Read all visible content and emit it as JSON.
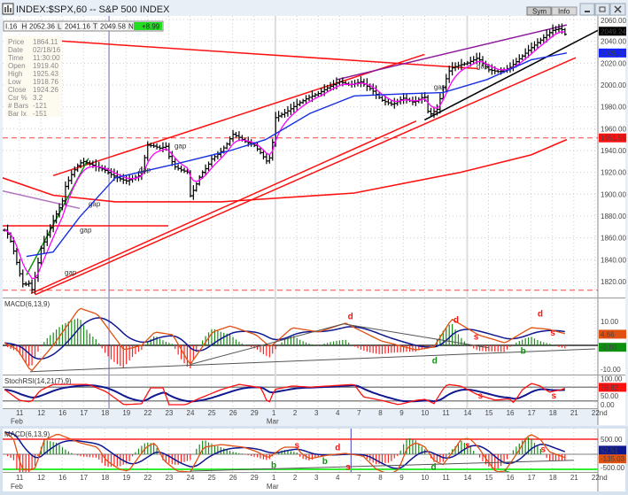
{
  "window": {
    "title": "INDEX:$SPX,60 -- S&P 500 INDEX",
    "sym_button": "Sym",
    "info_button": "Info",
    "minimize_icon": "minimize-icon",
    "maximize_icon": "maximize-icon",
    "close_icon": "close-icon"
  },
  "quote_bar": {
    "open_partial": "I.16",
    "h_label": "H",
    "high": "2052.36",
    "l_label": "L",
    "low": "2041.16",
    "t_label": "T",
    "last": "2049.58",
    "n_label": "N",
    "net": "+8.99"
  },
  "info_box": [
    {
      "k": "Price",
      "v": "1864.11"
    },
    {
      "k": "Date",
      "v": "02/18/16"
    },
    {
      "k": "Time",
      "v": "11:30:00"
    },
    {
      "k": "Open",
      "v": "1919.40"
    },
    {
      "k": "High",
      "v": "1925.43"
    },
    {
      "k": "Low",
      "v": "1918.76"
    },
    {
      "k": "Close",
      "v": "1924.26"
    },
    {
      "k": "Csr %",
      "v": "3.2"
    },
    {
      "k": "# Bars",
      "v": "-121"
    },
    {
      "k": "Bar Ix",
      "v": "-151"
    }
  ],
  "colors": {
    "up": "#1a8a1a",
    "down": "#ff2020",
    "macd": "#e05010",
    "signal": "#101890",
    "ma_short": "#ff00ff",
    "ma_mid": "#1830e0",
    "ma_long": "#ff1010",
    "trend": "#ff1010",
    "channel_top": "#8a1a9a"
  },
  "panels": {
    "macd1_label": "MACD(6,13,9)",
    "stoch_label": "StochRSI(14,21(7),9)",
    "macd2_label": "MACD(6,13,9)"
  },
  "chart_data": {
    "type": "candlestick-ohlc",
    "symbol": "INDEX:$SPX",
    "interval": "60 min",
    "x_ticks": [
      "11",
      "12",
      "16",
      "17",
      "18",
      "19",
      "22",
      "23",
      "24",
      "25",
      "26",
      "29",
      "1",
      "2",
      "3",
      "4",
      "7",
      "8",
      "9",
      "10",
      "11",
      "14",
      "15",
      "16",
      "17",
      "18",
      "21",
      "22nd"
    ],
    "months": [
      {
        "label": "Feb",
        "t": 0
      },
      {
        "label": "Mar",
        "t": 12
      }
    ],
    "price_axis": [
      "2060.00",
      "2040.00",
      "2020.00",
      "2000.00",
      "1980.00",
      "1960.00",
      "1940.00",
      "1920.00",
      "1900.00",
      "1880.00",
      "1860.00",
      "1840.00",
      "1820.00"
    ],
    "price_axis_values": [
      2060,
      2040,
      2020,
      2000,
      1980,
      1960,
      1940,
      1920,
      1900,
      1880,
      1860,
      1840,
      1820
    ],
    "price_markers": [
      {
        "text": "2049.24",
        "value": 2049.24,
        "color": "#000000"
      },
      {
        "text": "2029.32",
        "value": 2029.32,
        "color": "#1020ff"
      },
      {
        "text": "1951.55",
        "value": 1951.55,
        "color": "#ff1010"
      }
    ],
    "price_path": [
      [
        -0.7,
        1867
      ],
      [
        -0.5,
        1862
      ],
      [
        -0.3,
        1850
      ],
      [
        0,
        1828
      ],
      [
        0.2,
        1815
      ],
      [
        0.4,
        1820
      ],
      [
        0.6,
        1812
      ],
      [
        0.8,
        1830
      ],
      [
        1.0,
        1850
      ],
      [
        1.2,
        1858
      ],
      [
        1.5,
        1872
      ],
      [
        1.8,
        1885
      ],
      [
        2.0,
        1892
      ],
      [
        2.1,
        1905
      ],
      [
        2.5,
        1920
      ],
      [
        2.8,
        1928
      ],
      [
        3.0,
        1930
      ],
      [
        3.5,
        1926
      ],
      [
        4.0,
        1922
      ],
      [
        4.3,
        1918
      ],
      [
        4.6,
        1915
      ],
      [
        5.0,
        1912
      ],
      [
        5.4,
        1915
      ],
      [
        5.7,
        1918
      ],
      [
        6.0,
        1945
      ],
      [
        6.3,
        1944
      ],
      [
        6.6,
        1942
      ],
      [
        6.9,
        1944
      ],
      [
        7.0,
        1935
      ],
      [
        7.3,
        1925
      ],
      [
        7.6,
        1922
      ],
      [
        7.9,
        1920
      ],
      [
        8.0,
        1898
      ],
      [
        8.2,
        1905
      ],
      [
        8.5,
        1918
      ],
      [
        8.8,
        1925
      ],
      [
        9.0,
        1932
      ],
      [
        9.4,
        1938
      ],
      [
        9.7,
        1945
      ],
      [
        10.0,
        1955
      ],
      [
        10.3,
        1952
      ],
      [
        10.6,
        1948
      ],
      [
        11.0,
        1945
      ],
      [
        11.3,
        1938
      ],
      [
        11.6,
        1930
      ],
      [
        11.8,
        1935
      ],
      [
        12.0,
        1970
      ],
      [
        12.5,
        1975
      ],
      [
        13.0,
        1982
      ],
      [
        13.5,
        1988
      ],
      [
        14.0,
        1992
      ],
      [
        14.5,
        1998
      ],
      [
        15.0,
        2003
      ],
      [
        15.5,
        2000
      ],
      [
        16.0,
        2003
      ],
      [
        16.5,
        1996
      ],
      [
        17.0,
        1986
      ],
      [
        17.5,
        1982
      ],
      [
        18.0,
        1988
      ],
      [
        18.5,
        1984
      ],
      [
        19.0,
        1990
      ],
      [
        19.2,
        1972
      ],
      [
        19.6,
        1978
      ],
      [
        19.9,
        2000
      ],
      [
        20.2,
        2015
      ],
      [
        20.6,
        2018
      ],
      [
        21.0,
        2020
      ],
      [
        21.5,
        2025
      ],
      [
        21.8,
        2018
      ],
      [
        22.0,
        2014
      ],
      [
        22.5,
        2012
      ],
      [
        23.0,
        2016
      ],
      [
        23.5,
        2025
      ],
      [
        24.0,
        2034
      ],
      [
        24.5,
        2042
      ],
      [
        25.0,
        2050
      ],
      [
        25.4,
        2052
      ],
      [
        25.6,
        2046
      ],
      [
        25.7,
        2049.24
      ]
    ],
    "ma_mid": [
      [
        0.33,
        1843
      ],
      [
        1.58,
        1847
      ],
      [
        2.82,
        1879
      ],
      [
        4.49,
        1915
      ],
      [
        7.39,
        1928
      ],
      [
        9.89,
        1940
      ],
      [
        11.55,
        1950
      ],
      [
        13.63,
        1974
      ],
      [
        15.7,
        1990
      ],
      [
        18.2,
        1992
      ],
      [
        19.86,
        1993
      ],
      [
        21.93,
        2005
      ],
      [
        24.0,
        2023
      ],
      [
        25.67,
        2029.32
      ]
    ],
    "ma_long": [
      [
        -0.8,
        1915
      ],
      [
        1.58,
        1899
      ],
      [
        4.49,
        1893
      ],
      [
        9.47,
        1893
      ],
      [
        15.7,
        1901
      ],
      [
        20.69,
        1920
      ],
      [
        24.0,
        1936
      ],
      [
        25.67,
        1950
      ]
    ],
    "trend_lines": [
      {
        "name": "red-resistance-line",
        "color": "#ff1010",
        "from": [
          1.37,
          2041
        ],
        "to": [
          21.5,
          2015
        ]
      },
      {
        "name": "upper-channel-line",
        "color": "#ff1010",
        "from": [
          1.58,
          1917
        ],
        "to": [
          19.0,
          2028
        ]
      },
      {
        "name": "lower-support-line-a",
        "color": "#ff1010",
        "from": [
          0.54,
          1809
        ],
        "to": [
          18.61,
          1967
        ]
      },
      {
        "name": "lower-support-line-b",
        "color": "#ff1010",
        "from": [
          0.75,
          1808
        ],
        "to": [
          26.09,
          2025
        ]
      },
      {
        "name": "black-support-line",
        "color": "#000000",
        "from": [
          19.0,
          1968
        ],
        "to": [
          27.13,
          2050
        ]
      },
      {
        "name": "purple-top-line",
        "color": "#8a1a9a",
        "from": [
          14.9,
          2005
        ],
        "to": [
          25.67,
          2055
        ]
      },
      {
        "name": "green-rally-line",
        "color": "#119911",
        "from": [
          0.33,
          1826
        ],
        "to": [
          3.24,
          1933
        ]
      },
      {
        "name": "red-horizontal-line",
        "color": "#ff1010",
        "from": [
          -0.8,
          1871
        ],
        "to": [
          6.98,
          1871
        ]
      },
      {
        "name": "purple-thin-line",
        "color": "#b070c0",
        "from": [
          -0.8,
          1903
        ],
        "to": [
          2.82,
          1887
        ]
      }
    ],
    "dashed_levels": [
      1951.55,
      1812
    ],
    "gap_labels": [
      {
        "text": "gap",
        "t": 3.24,
        "p": 1889
      },
      {
        "text": "gap",
        "t": 2.83,
        "p": 1865
      },
      {
        "text": "gap",
        "t": 2.12,
        "p": 1826
      },
      {
        "text": "gap",
        "t": 5.6,
        "p": 1920
      },
      {
        "text": "gap",
        "t": 7.27,
        "p": 1942
      },
      {
        "text": "gap",
        "t": 19.44,
        "p": 1996
      },
      {
        "text": "gap",
        "t": 21.44,
        "p": 2015
      }
    ],
    "macd1": {
      "axis": [
        {
          "text": "10.00",
          "value": 10
        },
        {
          "text": "-10.00",
          "value": -10
        }
      ],
      "markers": [
        {
          "text": "4.66",
          "value": 4.66,
          "color": "#e05010"
        },
        {
          "text": "-0.80",
          "value": -0.8,
          "color": "#109010"
        }
      ],
      "line": [
        [
          -0.7,
          1
        ],
        [
          -0.08,
          -1.9
        ],
        [
          0.54,
          -11
        ],
        [
          1.58,
          0
        ],
        [
          2.82,
          15.6
        ],
        [
          3.66,
          13
        ],
        [
          4.9,
          -1.9
        ],
        [
          5.73,
          0
        ],
        [
          6.36,
          5.6
        ],
        [
          7.19,
          4.4
        ],
        [
          8.0,
          -8.1
        ],
        [
          9.06,
          5.6
        ],
        [
          9.89,
          8.1
        ],
        [
          11.1,
          4.4
        ],
        [
          11.76,
          -0.7
        ],
        [
          12.8,
          7.4
        ],
        [
          14.04,
          5.6
        ],
        [
          15.29,
          9.3
        ],
        [
          16.95,
          1.9
        ],
        [
          18.6,
          -1.9
        ],
        [
          19.44,
          -0.7
        ],
        [
          20.27,
          11
        ],
        [
          21.52,
          4.4
        ],
        [
          22.77,
          1
        ],
        [
          24.0,
          7.4
        ],
        [
          24.84,
          6.7
        ],
        [
          25.67,
          4.66
        ]
      ],
      "annotations": [
        {
          "text": "d",
          "t": 15.4,
          "v": 11,
          "color": "#ff1010"
        },
        {
          "text": "d",
          "t": 20.35,
          "v": 9.5,
          "color": "#ff1010"
        },
        {
          "text": "d",
          "t": 24.3,
          "v": 12,
          "color": "#ff1010"
        },
        {
          "text": "s",
          "t": 21.3,
          "v": 2.5,
          "color": "#ff1010"
        },
        {
          "text": "s",
          "t": 24.9,
          "v": 4,
          "color": "#ff1010"
        },
        {
          "text": "d",
          "t": 19.35,
          "v": -7.5,
          "color": "#109010"
        },
        {
          "text": "b",
          "t": 23.5,
          "v": -3.5,
          "color": "#109010"
        }
      ]
    },
    "stoch": {
      "axis": [
        {
          "text": "100.00",
          "value": 100
        },
        {
          "text": "50.00",
          "value": 50
        },
        {
          "text": "0.00",
          "value": 0
        }
      ],
      "markers": [
        {
          "text": "78.82",
          "value": 78.82,
          "color": "#ff1010"
        }
      ],
      "line": [
        [
          -0.71,
          70
        ],
        [
          0,
          23
        ],
        [
          0.54,
          15
        ],
        [
          0.96,
          65
        ],
        [
          1.58,
          92
        ],
        [
          3.24,
          92
        ],
        [
          4.07,
          60
        ],
        [
          4.9,
          4
        ],
        [
          5.73,
          8
        ],
        [
          6.15,
          77
        ],
        [
          6.77,
          77
        ],
        [
          6.98,
          4
        ],
        [
          7.81,
          4
        ],
        [
          8.23,
          23
        ],
        [
          9.47,
          70
        ],
        [
          10.3,
          92
        ],
        [
          11.34,
          77
        ],
        [
          11.67,
          4
        ],
        [
          11.97,
          70
        ],
        [
          12.8,
          85
        ],
        [
          13.63,
          80
        ],
        [
          15.7,
          92
        ],
        [
          16.12,
          38
        ],
        [
          16.95,
          23
        ],
        [
          17.78,
          4
        ],
        [
          18.61,
          23
        ],
        [
          19.03,
          27
        ],
        [
          19.44,
          8
        ],
        [
          19.86,
          70
        ],
        [
          20.07,
          92
        ],
        [
          20.69,
          85
        ],
        [
          21.52,
          46
        ],
        [
          22.35,
          23
        ],
        [
          22.97,
          30
        ],
        [
          23.18,
          12
        ],
        [
          23.6,
          70
        ],
        [
          24.01,
          96
        ],
        [
          24.43,
          85
        ],
        [
          24.84,
          58
        ],
        [
          25.46,
          70
        ],
        [
          25.67,
          78.82
        ]
      ],
      "annotations": [
        {
          "text": "s",
          "t": 21.5,
          "v": 30,
          "color": "#ff1010"
        },
        {
          "text": "s",
          "t": 24.95,
          "v": 30,
          "color": "#ff1010"
        }
      ]
    },
    "macd2": {
      "axis": [
        {
          "text": "500.00",
          "value": 500
        },
        {
          "text": "-500.00",
          "value": -500
        }
      ],
      "markers": [
        {
          "text": "52.51",
          "value": 52.51,
          "color": "#101890"
        },
        {
          "text": "-135.03",
          "value": -135.03,
          "color": "#e05010"
        }
      ],
      "line": [
        [
          -0.71,
          735
        ],
        [
          -0.29,
          529
        ],
        [
          0.12,
          -500
        ],
        [
          0.54,
          -529
        ],
        [
          0.75,
          -441
        ],
        [
          1.16,
          470
        ],
        [
          1.79,
          676
        ],
        [
          2.83,
          382
        ],
        [
          3.66,
          235
        ],
        [
          4.07,
          -206
        ],
        [
          4.69,
          -500
        ],
        [
          5.11,
          -559
        ],
        [
          5.94,
          235
        ],
        [
          6.36,
          382
        ],
        [
          6.77,
          -206
        ],
        [
          7.4,
          -559
        ],
        [
          8.02,
          -588
        ],
        [
          8.64,
          235
        ],
        [
          9.47,
          323
        ],
        [
          10.51,
          235
        ],
        [
          11.13,
          88
        ],
        [
          11.67,
          -118
        ],
        [
          12.38,
          235
        ],
        [
          13.0,
          235
        ],
        [
          13.21,
          29
        ],
        [
          13.63,
          -147
        ],
        [
          14.46,
          -29
        ],
        [
          15.29,
          29
        ],
        [
          16.12,
          -59
        ],
        [
          16.74,
          -500
        ],
        [
          17.37,
          -676
        ],
        [
          17.78,
          -500
        ],
        [
          18.2,
          235
        ],
        [
          18.61,
          382
        ],
        [
          19.03,
          235
        ],
        [
          19.44,
          -206
        ],
        [
          19.86,
          -353
        ],
        [
          20.48,
          235
        ],
        [
          20.69,
          500
        ],
        [
          21.11,
          529
        ],
        [
          21.52,
          235
        ],
        [
          21.94,
          -206
        ],
        [
          22.35,
          -588
        ],
        [
          22.77,
          -559
        ],
        [
          23.39,
          88
        ],
        [
          23.81,
          588
        ],
        [
          24.01,
          647
        ],
        [
          24.43,
          500
        ],
        [
          24.84,
          88
        ],
        [
          25.67,
          -135.03
        ]
      ],
      "annotations": [
        {
          "text": "b",
          "t": 11.8,
          "v": -450,
          "color": "#109010"
        },
        {
          "text": "s",
          "t": 12.9,
          "v": 200,
          "color": "#ff1010"
        },
        {
          "text": "b",
          "t": 14.2,
          "v": -320,
          "color": "#109010"
        },
        {
          "text": "d",
          "t": 14.8,
          "v": 130,
          "color": "#ff1010"
        },
        {
          "text": "s",
          "t": 15.3,
          "v": -520,
          "color": "#ff1010"
        },
        {
          "text": "d",
          "t": 19.3,
          "v": -520,
          "color": "#109010"
        },
        {
          "text": "s",
          "t": 20.9,
          "v": 200,
          "color": "#ff1010"
        },
        {
          "text": "b",
          "t": 22.75,
          "v": -720,
          "color": "#109010"
        },
        {
          "text": "s",
          "t": 24.45,
          "v": 80,
          "color": "#ff1010"
        }
      ]
    },
    "cursor_t": 4.2,
    "cursor2_t": 15.55
  }
}
